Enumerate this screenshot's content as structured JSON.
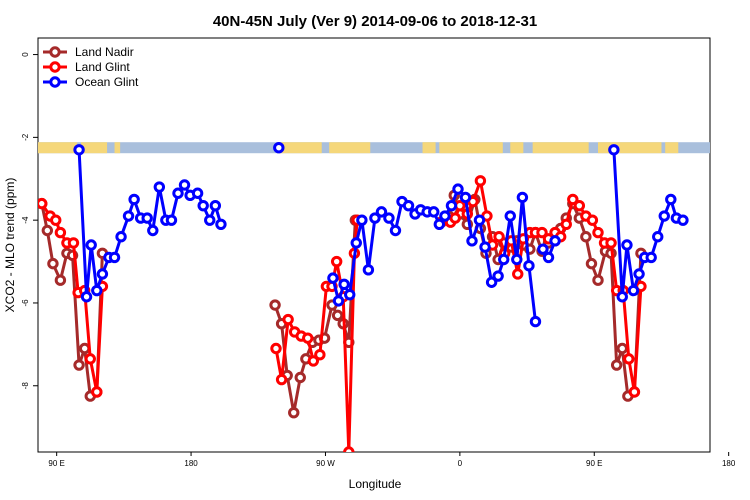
{
  "chart_data": {
    "type": "line",
    "title": "40N-45N July (Ver 9)   2014-09-06 to 2018-12-31",
    "xlabel": "Longitude",
    "ylabel": "XCO2 - MLO trend (ppm)",
    "xlim": [
      -1,
      35
    ],
    "ylim": [
      -9.6,
      0.4
    ],
    "x_ticks": [
      {
        "pos": 0,
        "label": "90 E"
      },
      {
        "pos": 7.2,
        "label": "180"
      },
      {
        "pos": 14.4,
        "label": "90 W"
      },
      {
        "pos": 21.6,
        "label": "0"
      },
      {
        "pos": 28.8,
        "label": "90 E"
      },
      {
        "pos": 36,
        "label": "180"
      }
    ],
    "y_ticks": [
      0,
      -2,
      -4,
      -6,
      -8
    ],
    "legend_position": "top-left",
    "colors": {
      "land_nadir": "#a52a2a",
      "land_glint": "#ff0000",
      "ocean_glint": "#0000ff",
      "land_strip": "#f5d77a",
      "ocean_strip": "#a9bfdc"
    },
    "land_ocean_strip": {
      "y_center": -2.25,
      "land_segments": [
        [
          -1,
          1.1
        ],
        [
          1.3,
          2.7
        ],
        [
          3.1,
          3.4
        ],
        [
          11.8,
          14.2
        ],
        [
          14.6,
          16.8
        ],
        [
          19.6,
          20.3
        ],
        [
          20.5,
          23.9
        ],
        [
          24.3,
          25.0
        ],
        [
          25.5,
          28.5
        ],
        [
          29.0,
          32.4
        ],
        [
          32.6,
          33.3
        ]
      ]
    },
    "series": [
      {
        "name": "Land Nadir",
        "key": "land_nadir",
        "segments": [
          [
            [
              -0.8,
              -3.6
            ],
            [
              -0.5,
              -4.25
            ],
            [
              -0.2,
              -5.05
            ],
            [
              0.2,
              -5.45
            ],
            [
              0.55,
              -4.8
            ],
            [
              0.85,
              -4.85
            ],
            [
              1.2,
              -7.5
            ],
            [
              1.5,
              -7.1
            ],
            [
              1.8,
              -8.25
            ],
            [
              2.15,
              -8.15
            ],
            [
              2.45,
              -4.8
            ]
          ],
          [
            [
              11.7,
              -6.05
            ],
            [
              12.05,
              -6.5
            ],
            [
              12.35,
              -7.75
            ],
            [
              12.7,
              -8.65
            ],
            [
              13.05,
              -7.8
            ],
            [
              13.35,
              -7.35
            ],
            [
              13.7,
              -6.95
            ],
            [
              14.05,
              -6.9
            ],
            [
              14.35,
              -6.85
            ],
            [
              14.75,
              -6.05
            ],
            [
              15.05,
              -6.3
            ],
            [
              15.35,
              -6.5
            ],
            [
              15.65,
              -6.95
            ],
            [
              16.0,
              -4.0
            ]
          ],
          [
            [
              20.6,
              -4.05
            ],
            [
              21.0,
              -3.9
            ],
            [
              21.3,
              -3.4
            ],
            [
              21.6,
              -3.85
            ],
            [
              22.0,
              -4.1
            ],
            [
              22.4,
              -3.5
            ],
            [
              22.7,
              -4.2
            ],
            [
              23.0,
              -4.8
            ],
            [
              23.35,
              -4.4
            ],
            [
              23.65,
              -4.95
            ],
            [
              23.95,
              -4.55
            ],
            [
              24.35,
              -4.65
            ],
            [
              24.65,
              -4.5
            ],
            [
              25.0,
              -4.6
            ],
            [
              25.35,
              -4.7
            ],
            [
              25.65,
              -4.3
            ],
            [
              26.0,
              -4.75
            ],
            [
              26.35,
              -4.55
            ],
            [
              26.7,
              -4.5
            ],
            [
              27.0,
              -4.2
            ],
            [
              27.3,
              -3.95
            ],
            [
              27.65,
              -3.6
            ],
            [
              28.0,
              -3.95
            ],
            [
              28.35,
              -4.4
            ],
            [
              28.65,
              -5.05
            ],
            [
              29.0,
              -5.45
            ],
            [
              29.4,
              -4.75
            ],
            [
              29.7,
              -4.8
            ],
            [
              30.0,
              -7.5
            ],
            [
              30.3,
              -7.1
            ],
            [
              30.6,
              -8.25
            ],
            [
              30.95,
              -8.15
            ],
            [
              31.3,
              -4.8
            ]
          ]
        ]
      },
      {
        "name": "Land Glint",
        "key": "land_glint",
        "segments": [
          [
            [
              -0.8,
              -3.6
            ],
            [
              -0.35,
              -3.9
            ],
            [
              -0.05,
              -4.0
            ],
            [
              0.2,
              -4.3
            ],
            [
              0.55,
              -4.55
            ],
            [
              0.9,
              -4.55
            ],
            [
              1.15,
              -5.75
            ],
            [
              1.5,
              -5.7
            ],
            [
              1.8,
              -7.35
            ],
            [
              2.15,
              -8.15
            ],
            [
              2.45,
              -5.6
            ]
          ],
          [
            [
              11.75,
              -7.1
            ],
            [
              12.05,
              -7.85
            ],
            [
              12.4,
              -6.4
            ],
            [
              12.75,
              -6.7
            ],
            [
              13.1,
              -6.8
            ],
            [
              13.45,
              -6.85
            ],
            [
              13.75,
              -7.4
            ],
            [
              14.1,
              -7.25
            ],
            [
              14.45,
              -5.6
            ],
            [
              14.75,
              -5.6
            ],
            [
              15.0,
              -5.0
            ],
            [
              15.35,
              -5.85
            ],
            [
              15.65,
              -9.6
            ],
            [
              15.95,
              -4.8
            ],
            [
              16.1,
              -4.0
            ]
          ],
          [
            [
              20.6,
              -4.05
            ],
            [
              21.1,
              -4.05
            ],
            [
              21.35,
              -3.95
            ],
            [
              21.6,
              -3.65
            ],
            [
              22.0,
              -3.85
            ],
            [
              22.3,
              -3.55
            ],
            [
              22.7,
              -3.05
            ],
            [
              23.05,
              -3.9
            ],
            [
              23.35,
              -4.6
            ],
            [
              23.7,
              -4.4
            ],
            [
              24.0,
              -4.8
            ],
            [
              24.35,
              -4.5
            ],
            [
              24.7,
              -5.3
            ],
            [
              25.0,
              -4.45
            ],
            [
              25.35,
              -4.3
            ],
            [
              25.65,
              -4.3
            ],
            [
              26.0,
              -4.3
            ],
            [
              26.35,
              -4.45
            ],
            [
              26.7,
              -4.3
            ],
            [
              27.0,
              -4.4
            ],
            [
              27.3,
              -4.1
            ],
            [
              27.65,
              -3.5
            ],
            [
              28.0,
              -3.65
            ],
            [
              28.35,
              -3.9
            ],
            [
              28.7,
              -4.0
            ],
            [
              29.0,
              -4.3
            ],
            [
              29.35,
              -4.55
            ],
            [
              29.7,
              -4.55
            ],
            [
              30.0,
              -5.7
            ],
            [
              30.35,
              -5.7
            ],
            [
              30.65,
              -7.35
            ],
            [
              30.95,
              -8.15
            ],
            [
              31.3,
              -5.6
            ]
          ]
        ]
      },
      {
        "name": "Ocean Glint",
        "key": "ocean_glint",
        "segments": [
          [
            [
              1.2,
              -2.3
            ],
            [
              1.6,
              -5.85
            ],
            [
              1.85,
              -4.6
            ],
            [
              2.15,
              -5.7
            ],
            [
              2.45,
              -5.3
            ],
            [
              2.8,
              -4.9
            ],
            [
              3.1,
              -4.9
            ],
            [
              3.45,
              -4.4
            ],
            [
              3.85,
              -3.9
            ],
            [
              4.15,
              -3.5
            ],
            [
              4.5,
              -3.95
            ],
            [
              4.85,
              -3.95
            ],
            [
              5.15,
              -4.25
            ],
            [
              5.5,
              -3.2
            ],
            [
              5.85,
              -4.0
            ],
            [
              6.15,
              -4.0
            ],
            [
              6.5,
              -3.35
            ],
            [
              6.85,
              -3.15
            ],
            [
              7.15,
              -3.4
            ],
            [
              7.55,
              -3.35
            ],
            [
              7.85,
              -3.65
            ],
            [
              8.2,
              -4.0
            ],
            [
              8.5,
              -3.65
            ],
            [
              8.8,
              -4.1
            ]
          ],
          [
            [
              11.9,
              -2.25
            ]
          ],
          [
            [
              14.8,
              -5.4
            ],
            [
              15.1,
              -5.95
            ],
            [
              15.4,
              -5.55
            ],
            [
              15.7,
              -5.8
            ],
            [
              16.05,
              -4.55
            ],
            [
              16.35,
              -4.0
            ],
            [
              16.7,
              -5.2
            ],
            [
              17.05,
              -3.95
            ],
            [
              17.4,
              -3.8
            ],
            [
              17.8,
              -3.95
            ],
            [
              18.15,
              -4.25
            ],
            [
              18.5,
              -3.55
            ],
            [
              18.85,
              -3.65
            ],
            [
              19.2,
              -3.85
            ],
            [
              19.5,
              -3.75
            ],
            [
              19.85,
              -3.8
            ],
            [
              20.2,
              -3.8
            ],
            [
              20.5,
              -4.1
            ],
            [
              20.8,
              -3.9
            ],
            [
              21.15,
              -3.65
            ],
            [
              21.5,
              -3.25
            ],
            [
              21.9,
              -3.45
            ],
            [
              22.25,
              -4.5
            ],
            [
              22.65,
              -4.0
            ],
            [
              22.95,
              -4.65
            ],
            [
              23.3,
              -5.5
            ],
            [
              23.65,
              -5.35
            ],
            [
              23.95,
              -4.95
            ],
            [
              24.3,
              -3.9
            ],
            [
              24.65,
              -4.95
            ],
            [
              24.95,
              -3.45
            ],
            [
              25.3,
              -5.1
            ],
            [
              25.65,
              -6.45
            ]
          ],
          [
            [
              26.05,
              -4.7
            ],
            [
              26.35,
              -4.9
            ],
            [
              26.7,
              -4.5
            ]
          ],
          [
            [
              29.85,
              -2.3
            ],
            [
              30.3,
              -5.85
            ],
            [
              30.55,
              -4.6
            ],
            [
              30.9,
              -5.7
            ],
            [
              31.2,
              -5.3
            ],
            [
              31.5,
              -4.9
            ],
            [
              31.85,
              -4.9
            ],
            [
              32.2,
              -4.4
            ],
            [
              32.55,
              -3.9
            ],
            [
              32.9,
              -3.5
            ],
            [
              33.2,
              -3.95
            ],
            [
              33.55,
              -4.0
            ]
          ]
        ]
      }
    ]
  }
}
